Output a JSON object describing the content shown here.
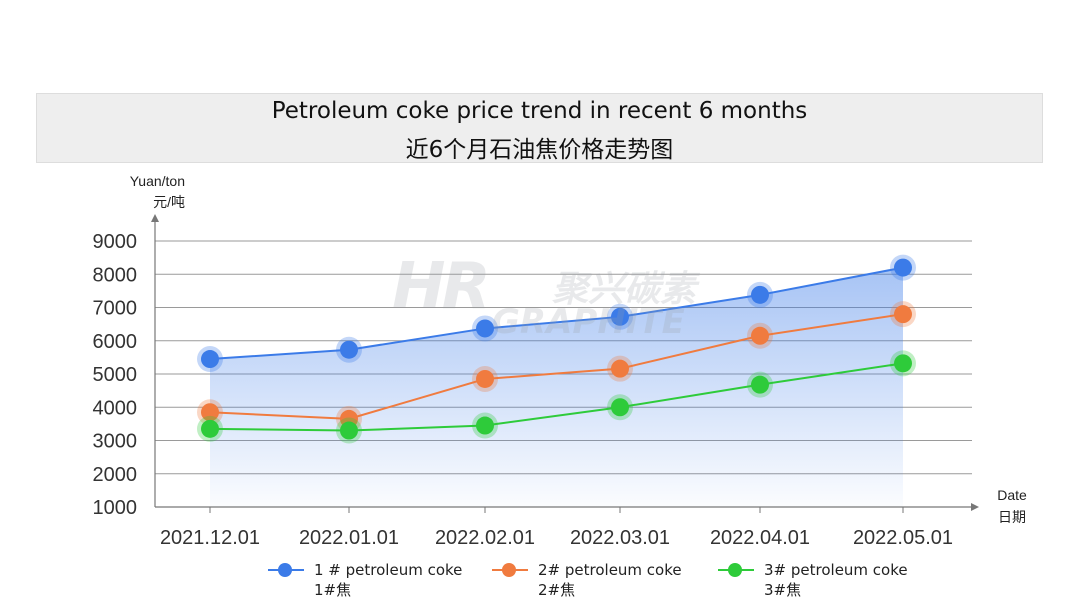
{
  "title": {
    "en": "Petroleum coke price trend in recent 6 months",
    "cn": "近6个月石油焦价格走势图"
  },
  "watermark": {
    "logo": "HR",
    "cn": "聚兴碳素",
    "en": "GRAPHITE"
  },
  "chart_data": {
    "type": "line",
    "ylabel_en": "Yuan/ton",
    "ylabel_cn": "元/吨",
    "xlabel_en": "Date",
    "xlabel_cn": "日期",
    "ylim": [
      1000,
      9000
    ],
    "yticks": [
      "9000",
      "8000",
      "7000",
      "6000",
      "5000",
      "4000",
      "3000",
      "2000",
      "1000"
    ],
    "categories": [
      "2021.12.01",
      "2022.01.01",
      "2022.02.01",
      "2022.03.01",
      "2022.04.01",
      "2022.05.01"
    ],
    "grid": true,
    "legend_position": "bottom",
    "series": [
      {
        "name_en": "1 # petroleum coke",
        "name_cn": "1#焦",
        "color": "#3b7be8",
        "values": [
          5450,
          5730,
          6370,
          6720,
          7380,
          8200
        ]
      },
      {
        "name_en": "2# petroleum coke",
        "name_cn": "2#焦",
        "color": "#f07b3f",
        "values": [
          3850,
          3650,
          4850,
          5160,
          6150,
          6800
        ]
      },
      {
        "name_en": "3# petroleum coke",
        "name_cn": "3#焦",
        "color": "#2ecb3a",
        "values": [
          3350,
          3300,
          3450,
          4000,
          4680,
          5320
        ]
      }
    ]
  }
}
